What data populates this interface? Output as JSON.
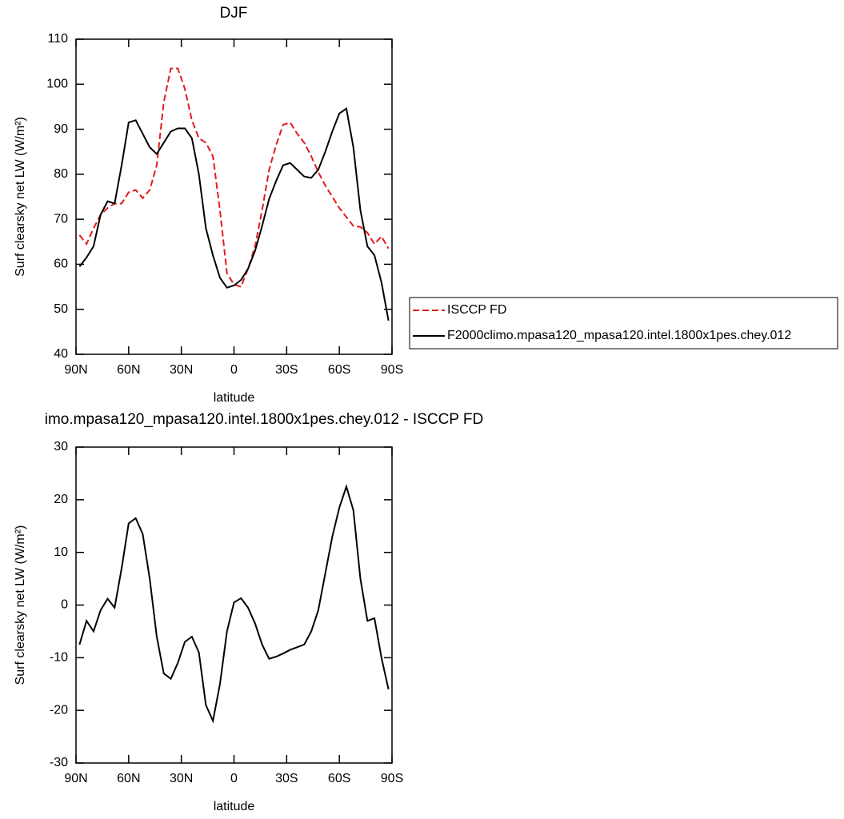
{
  "chart_data": [
    {
      "type": "line",
      "title": "DJF",
      "xlabel": "latitude",
      "ylabel": "Surf clearsky net LW (W/m²)",
      "x": [
        88,
        84,
        80,
        76,
        72,
        68,
        64,
        60,
        56,
        52,
        48,
        44,
        40,
        36,
        32,
        28,
        24,
        20,
        16,
        12,
        8,
        4,
        0,
        -4,
        -8,
        -12,
        -16,
        -20,
        -24,
        -28,
        -32,
        -36,
        -40,
        -44,
        -48,
        -52,
        -56,
        -60,
        -64,
        -68,
        -72,
        -76,
        -80,
        -84,
        -88
      ],
      "series": [
        {
          "name": "ISCCP FD",
          "color": "#e41a1c",
          "line_style": "dashed",
          "values": [
            66.5,
            64.5,
            68,
            71,
            72.5,
            73.5,
            73.5,
            76,
            76.5,
            74.7,
            76.5,
            82,
            96,
            103.5,
            103.5,
            99,
            92,
            88,
            87,
            84,
            72,
            58,
            55.5,
            55,
            59,
            64,
            72,
            81,
            86.5,
            91,
            91.5,
            89,
            87,
            84,
            80.5,
            77.5,
            75,
            72.5,
            70.5,
            68.5,
            68.3,
            67,
            64.5,
            66.2,
            63.5
          ]
        },
        {
          "name": "F2000climo.mpasa120_mpasa120.intel.1800x1pes.chey.012",
          "color": "#000000",
          "line_style": "solid",
          "values": [
            59.5,
            61.5,
            64,
            71,
            74,
            73.5,
            82,
            91.5,
            92,
            89,
            86,
            84.5,
            87,
            89.5,
            90.2,
            90.2,
            88,
            80,
            68,
            62,
            57,
            54.8,
            55.3,
            56.5,
            59,
            63,
            68.5,
            74.5,
            78.5,
            82,
            82.5,
            81,
            79.5,
            79.2,
            81,
            85,
            89.5,
            93.5,
            94.6,
            86,
            72,
            64,
            62,
            56,
            47.5
          ]
        }
      ],
      "xlim": [
        90,
        -90
      ],
      "xticks": [
        {
          "value": 90,
          "label": "90N"
        },
        {
          "value": 60,
          "label": "60N"
        },
        {
          "value": 30,
          "label": "30N"
        },
        0,
        {
          "value": -30,
          "label": "30S"
        },
        {
          "value": -60,
          "label": "60S"
        },
        {
          "value": -90,
          "label": "90S"
        }
      ],
      "ylim": [
        40,
        110
      ],
      "yticks": [
        40,
        50,
        60,
        70,
        80,
        90,
        100,
        110
      ],
      "legend_position": "right"
    },
    {
      "type": "line",
      "title": "imo.mpasa120_mpasa120.intel.1800x1pes.chey.012 - ISCCP FD",
      "xlabel": "latitude",
      "ylabel": "Surf clearsky net LW (W/m²)",
      "x": [
        88,
        84,
        80,
        76,
        72,
        68,
        64,
        60,
        56,
        52,
        48,
        44,
        40,
        36,
        32,
        28,
        24,
        20,
        16,
        12,
        8,
        4,
        0,
        -4,
        -8,
        -12,
        -16,
        -20,
        -24,
        -28,
        -32,
        -36,
        -40,
        -44,
        -48,
        -52,
        -56,
        -60,
        -64,
        -68,
        -72,
        -76,
        -80,
        -84,
        -88
      ],
      "color": "#000000",
      "values": [
        -7.5,
        -3,
        -5,
        -1,
        1.2,
        -0.5,
        7,
        15.5,
        16.5,
        13.5,
        5,
        -6,
        -13,
        -14,
        -11,
        -7,
        -6,
        -9,
        -19,
        -22,
        -15,
        -5,
        0.5,
        1.3,
        -0.5,
        -3.5,
        -7.5,
        -10.2,
        -9.8,
        -9.2,
        -8.5,
        -8,
        -7.5,
        -5,
        -1,
        6,
        13,
        18.5,
        22.5,
        18,
        5,
        -3,
        -2.5,
        -10,
        -16
      ],
      "xlim": [
        90,
        -90
      ],
      "xticks": [
        {
          "value": 90,
          "label": "90N"
        },
        {
          "value": 60,
          "label": "60N"
        },
        {
          "value": 30,
          "label": "30N"
        },
        0,
        {
          "value": -30,
          "label": "30S"
        },
        {
          "value": -60,
          "label": "60S"
        },
        {
          "value": -90,
          "label": "90S"
        }
      ],
      "ylim": [
        -30,
        30
      ],
      "yticks": [
        -30,
        -20,
        -10,
        0,
        10,
        20,
        30
      ]
    }
  ]
}
